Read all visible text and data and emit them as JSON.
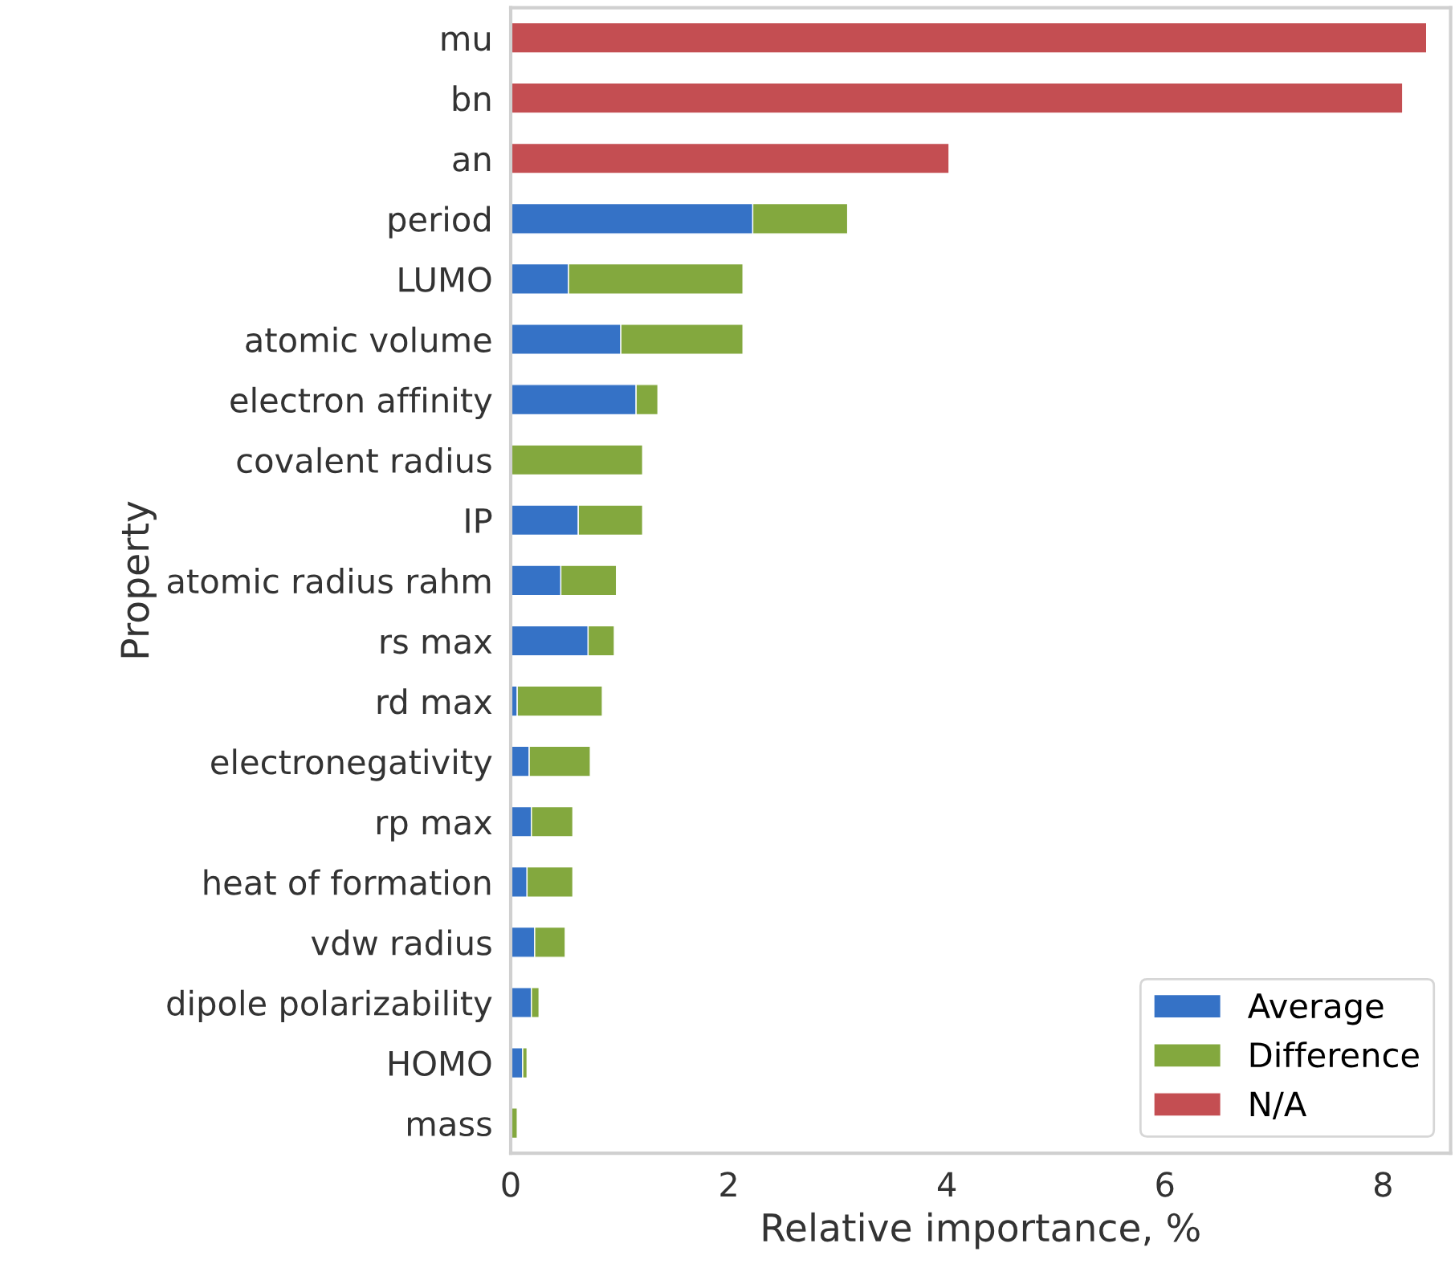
{
  "chart_data": {
    "type": "bar",
    "orientation": "horizontal",
    "stacked": true,
    "xlabel": "Relative importance, %",
    "ylabel": "Property",
    "categories": [
      "mu",
      "bn",
      "an",
      "period",
      "LUMO",
      "atomic volume",
      "electron affinity",
      "covalent radius",
      "IP",
      "atomic radius rahm",
      "rs max",
      "rd max",
      "electronegativity",
      "rp max",
      "heat of formation",
      "vdw radius",
      "dipole polarizability",
      "HOMO",
      "mass"
    ],
    "series": [
      {
        "name": "Average",
        "color": "#3572c6",
        "values": [
          null,
          null,
          null,
          2.22,
          0.53,
          1.01,
          1.15,
          null,
          0.62,
          0.46,
          0.71,
          0.06,
          0.17,
          0.19,
          0.15,
          0.22,
          0.19,
          0.11,
          null
        ]
      },
      {
        "name": "Difference",
        "color": "#83a83e",
        "values": [
          null,
          null,
          null,
          0.87,
          1.6,
          1.12,
          0.2,
          1.21,
          0.59,
          0.51,
          0.24,
          0.78,
          0.56,
          0.38,
          0.42,
          0.28,
          0.07,
          0.04,
          0.06
        ]
      },
      {
        "name": "N/A",
        "color": "#c44e52",
        "values": [
          8.4,
          8.18,
          4.02,
          null,
          null,
          null,
          null,
          null,
          null,
          null,
          null,
          null,
          null,
          null,
          null,
          null,
          null,
          null,
          null
        ]
      }
    ],
    "xlim": [
      0,
      8.62
    ],
    "xticks": [
      0,
      2,
      4,
      6,
      8
    ],
    "grid": false,
    "legend": "bottom right"
  }
}
